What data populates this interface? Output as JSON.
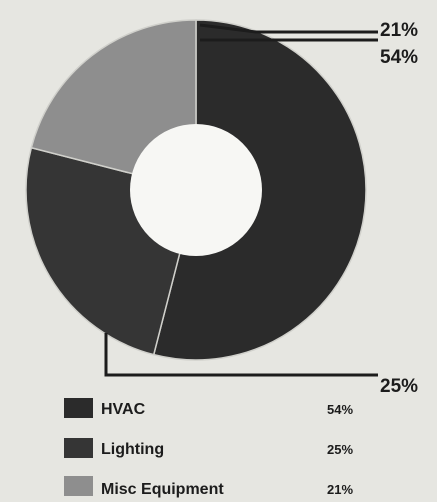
{
  "chart_data": {
    "type": "pie",
    "variant": "donut",
    "start_angle_deg": 0,
    "direction": "clockwise",
    "slices": [
      {
        "label": "HVAC",
        "value": 54,
        "display": "54%",
        "color": "#2b2b2b"
      },
      {
        "label": "Lighting",
        "value": 25,
        "display": "25%",
        "color": "#353535"
      },
      {
        "label": "Misc Equipment",
        "value": 21,
        "display": "21%",
        "color": "#8e8e8e"
      }
    ],
    "callouts": [
      {
        "text": "21%"
      },
      {
        "text": "54%"
      },
      {
        "text": "25%"
      }
    ],
    "legend_position": "bottom"
  }
}
